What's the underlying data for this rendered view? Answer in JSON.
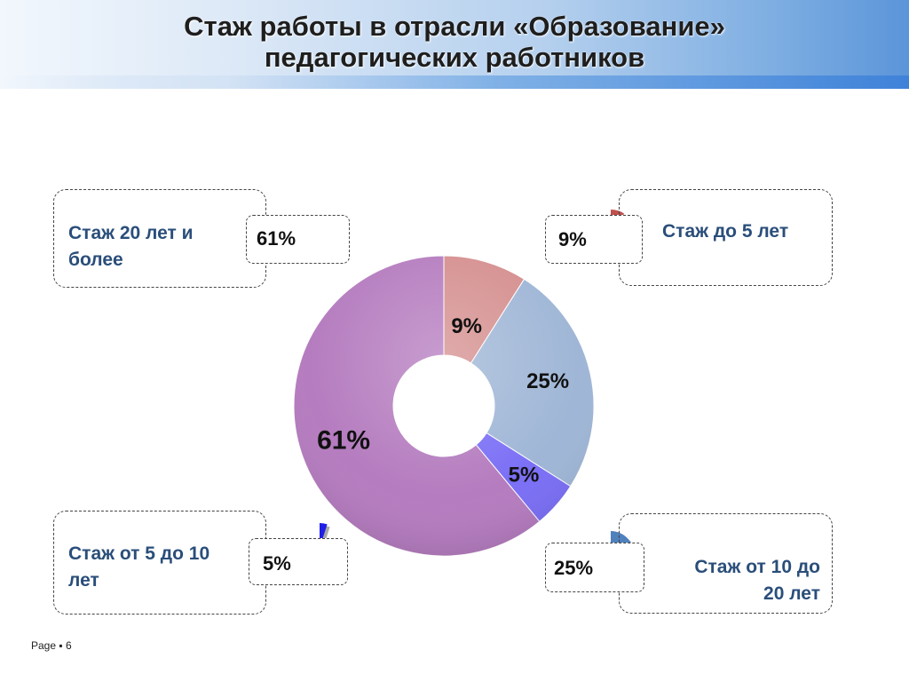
{
  "slide": {
    "title_line1": "Стаж работы в отрасли «Образование»",
    "title_line2": "педагогических работников",
    "footer_prefix": "Page",
    "footer_sep": "▪",
    "page_number": "6"
  },
  "chart_data": {
    "type": "pie",
    "variant": "donut",
    "categories": [
      "Стаж до 5 лет",
      "Стаж от 10 до 20 лет",
      "Стаж от 5 до 10 лет",
      "Стаж 20 лет и более"
    ],
    "values": [
      9,
      25,
      5,
      61
    ],
    "labels": [
      "9%",
      "25%",
      "5%",
      "61%"
    ],
    "colors": [
      "#d58f8f",
      "#9fb6d6",
      "#7b6ff5",
      "#b57cbf"
    ],
    "legend_icon_colors": [
      "#c0504d",
      "#4f81bd",
      "#1f1fe6",
      "#7f1a8a"
    ],
    "legend": [
      {
        "label": "Стаж 20 лет и более",
        "line1": "Стаж 20 лет и",
        "line2": "более",
        "pct": "61%"
      },
      {
        "label": "Стаж до 5 лет",
        "line1": "Стаж до 5 лет",
        "line2": "",
        "pct": "9%"
      },
      {
        "label": "Стаж от 5 до 10 лет",
        "line1": "Стаж от 5 до 10",
        "line2": "лет",
        "pct": "5%"
      },
      {
        "label": "Стаж от 10 до 20 лет",
        "line1": "Стаж от 10 до",
        "line2": "20 лет",
        "pct": "25%"
      }
    ]
  }
}
